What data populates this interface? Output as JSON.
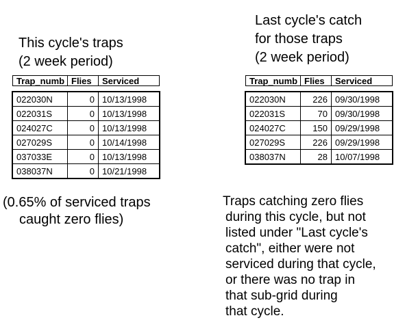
{
  "colors": {
    "background": "#ffffff",
    "text": "#000000",
    "border": "#000000"
  },
  "left": {
    "title_lines": [
      "This cycle's traps",
      "(2 week period)"
    ],
    "table": {
      "headers": [
        "Trap_numb",
        "Flies",
        "Serviced"
      ],
      "rows": [
        [
          "022030N",
          "0",
          "10/13/1998"
        ],
        [
          "022031S",
          "0",
          "10/13/1998"
        ],
        [
          "024027C",
          "0",
          "10/13/1998"
        ],
        [
          "027029S",
          "0",
          "10/14/1998"
        ],
        [
          "037033E",
          "0",
          "10/13/1998"
        ],
        [
          "038037N",
          "0",
          "10/21/1998"
        ]
      ]
    },
    "note_lines": [
      "(0.65% of serviced traps",
      "caught zero flies)"
    ]
  },
  "right": {
    "title_lines": [
      "Last cycle's catch",
      "for those traps",
      "(2 week period)"
    ],
    "table": {
      "headers": [
        "Trap_numb",
        "Flies",
        "Serviced"
      ],
      "rows": [
        [
          "022030N",
          "226",
          "09/30/1998"
        ],
        [
          "022031S",
          "70",
          "09/30/1998"
        ],
        [
          "024027C",
          "150",
          "09/29/1998"
        ],
        [
          "027029S",
          "226",
          "09/29/1998"
        ],
        [
          "038037N",
          "28",
          "10/07/1998"
        ]
      ]
    },
    "note_lines": [
      "Traps catching zero flies",
      "during this cycle, but not",
      "listed under \"Last cycle's",
      "catch\", either were not",
      "serviced during that cycle,",
      "or there was no trap in",
      "that sub-grid during",
      "that cycle."
    ]
  }
}
